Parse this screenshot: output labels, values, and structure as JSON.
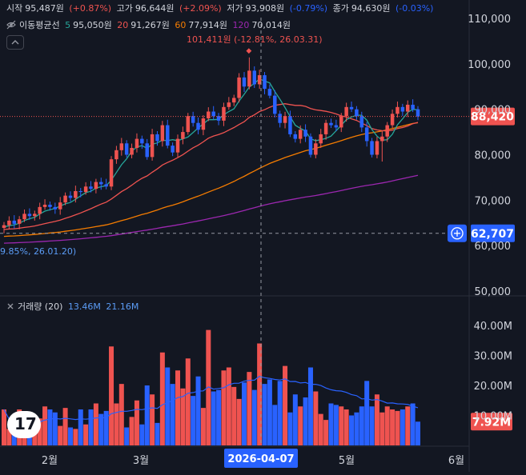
{
  "ohlc_legend": {
    "open_label": "시작",
    "open_value": "95,487원",
    "open_change": "(+0.87%)",
    "high_label": "고가",
    "high_value": "96,644원",
    "high_change": "(+2.09%)",
    "low_label": "저가",
    "low_value": "93,908원",
    "low_change": "(-0.79%)",
    "close_label": "종가",
    "close_value": "94,630원",
    "close_change": "(-0.03%)"
  },
  "ma_legend": {
    "title": "이동평균선",
    "items": [
      {
        "period": "5",
        "value": "95,050원",
        "color": "#26a69a"
      },
      {
        "period": "20",
        "value": "91,267원",
        "color": "#ef5350"
      },
      {
        "period": "60",
        "value": "77,914원",
        "color": "#f57c00"
      },
      {
        "period": "120",
        "value": "70,014원",
        "color": "#9c27b0"
      }
    ]
  },
  "high_marker": "101,411원 (-12.81%, 26.03.31)",
  "low_marker": "9.85%, 26.01.20)",
  "volume_legend": {
    "title": "거래량 (20)",
    "value1": "13.46M",
    "value2": "21.16M"
  },
  "price_tag": "88,420",
  "crosshair_price_tag": "62,707",
  "volume_tag": "7.92M",
  "crosshair_date": "2026-04-07",
  "colors": {
    "up": "#ef5350",
    "down": "#2962ff",
    "bg": "#131722",
    "ma5": "#26a69a",
    "ma20": "#ef5350",
    "ma60": "#f57c00",
    "ma120": "#9c27b0",
    "vol_ma": "#2962ff"
  },
  "chart_data": {
    "type": "candlestick",
    "price_axis": {
      "ticks": [
        "110,000",
        "100,000",
        "90,000",
        "80,000",
        "70,000",
        "60,000",
        "50,000"
      ],
      "ylim": [
        50000,
        112000
      ]
    },
    "volume_axis": {
      "ticks": [
        "40.00M",
        "30.00M",
        "20.00M",
        "10.00M"
      ],
      "ylim": [
        0,
        45000000
      ]
    },
    "x_ticks": [
      "2월",
      "3월",
      "5월",
      "6월"
    ],
    "close": [
      64500,
      65500,
      64800,
      65800,
      67000,
      66500,
      67000,
      68500,
      69000,
      68500,
      68000,
      69500,
      71000,
      70500,
      72000,
      71800,
      73000,
      72500,
      74000,
      73500,
      73000,
      79000,
      81000,
      82500,
      80000,
      81500,
      83500,
      82500,
      79500,
      84500,
      83000,
      86500,
      82000,
      80500,
      83500,
      85000,
      88500,
      87000,
      85500,
      88000,
      89500,
      88500,
      87500,
      90500,
      91500,
      92500,
      97000,
      95000,
      98500,
      95500,
      97500,
      94500,
      93000,
      89000,
      87000,
      88500,
      84500,
      83500,
      85500,
      84000,
      80000,
      82500,
      84500,
      87000,
      86500,
      86000,
      88500,
      90500,
      90000,
      88500,
      86000,
      83000,
      80000,
      83000,
      84000,
      86500,
      89000,
      90500,
      89500,
      91000,
      90000,
      88420
    ],
    "volume": [
      12.0,
      5.5,
      6.5,
      12.0,
      6.0,
      4.5,
      7.5,
      9.0,
      13.0,
      12.0,
      11.0,
      6.5,
      12.5,
      6.0,
      5.5,
      12.0,
      7.0,
      12.0,
      14.0,
      10.5,
      11.5,
      33.0,
      14.0,
      20.5,
      6.0,
      9.5,
      15.0,
      7.0,
      20.0,
      17.0,
      7.5,
      31.0,
      26.0,
      20.5,
      25.0,
      19.0,
      29.0,
      16.5,
      23.0,
      12.5,
      38.5,
      18.0,
      18.5,
      25.0,
      26.0,
      19.5,
      15.5,
      21.0,
      24.5,
      18.5,
      34.0,
      20.5,
      22.0,
      13.5,
      21.5,
      26.5,
      11.0,
      17.0,
      13.0,
      16.0,
      26.0,
      18.0,
      10.5,
      8.5,
      14.0,
      13.5,
      13.0,
      12.0,
      10.0,
      11.0,
      13.0,
      21.5,
      13.0,
      17.0,
      11.0,
      13.0,
      12.0,
      11.5,
      12.0,
      13.0,
      14.0,
      7.92
    ],
    "volume_unit": "M"
  }
}
